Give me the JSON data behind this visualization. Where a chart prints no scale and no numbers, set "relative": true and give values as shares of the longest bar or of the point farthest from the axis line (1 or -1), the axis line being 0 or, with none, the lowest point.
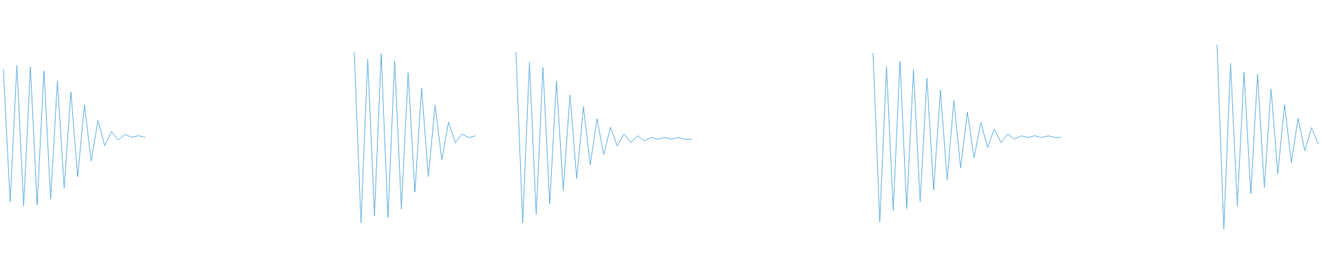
{
  "chart_data": [
    {
      "type": "line",
      "relative": true,
      "color": "#5dade2",
      "categories": [
        null,
        null,
        null,
        null,
        null,
        null,
        null,
        null,
        null,
        null,
        null,
        null,
        null,
        null,
        null,
        null,
        null,
        null,
        null,
        null,
        null,
        null
      ],
      "values": [
        0.97,
        0.03,
        1,
        0,
        0.99,
        0.01,
        0.96,
        0.05,
        0.89,
        0.13,
        0.81,
        0.21,
        0.72,
        0.32,
        0.61,
        0.43,
        0.53,
        0.47,
        0.51,
        0.49,
        0.5,
        0.49
      ]
    },
    {
      "type": "line",
      "relative": true,
      "color": "#5dade2",
      "categories": [
        null,
        null,
        null,
        null,
        null,
        null,
        null,
        null,
        null,
        null,
        null,
        null,
        null,
        null,
        null,
        null,
        null,
        null,
        null
      ],
      "values": [
        1,
        0,
        0.96,
        0.04,
        0.99,
        0.03,
        0.95,
        0.08,
        0.88,
        0.18,
        0.79,
        0.27,
        0.69,
        0.37,
        0.59,
        0.47,
        0.52,
        0.5,
        0.51
      ]
    },
    {
      "type": "line",
      "relative": true,
      "color": "#5dade2",
      "categories": [
        null,
        null,
        null,
        null,
        null,
        null,
        null,
        null,
        null,
        null,
        null,
        null,
        null,
        null,
        null,
        null,
        null,
        null,
        null,
        null,
        null,
        null,
        null,
        null,
        null,
        null,
        null
      ],
      "values": [
        1,
        0,
        0.94,
        0.05,
        0.91,
        0.11,
        0.83,
        0.19,
        0.75,
        0.26,
        0.68,
        0.34,
        0.61,
        0.4,
        0.56,
        0.45,
        0.52,
        0.47,
        0.51,
        0.48,
        0.5,
        0.49,
        0.5,
        0.49,
        0.5,
        0.49,
        0.49
      ]
    },
    {
      "type": "line",
      "relative": true,
      "color": "#5dade2",
      "categories": [
        null,
        null,
        null,
        null,
        null,
        null,
        null,
        null,
        null,
        null,
        null,
        null,
        null,
        null,
        null,
        null,
        null,
        null,
        null,
        null,
        null,
        null,
        null,
        null,
        null,
        null,
        null,
        null,
        null
      ],
      "values": [
        1,
        0,
        0.92,
        0.07,
        0.95,
        0.08,
        0.9,
        0.12,
        0.85,
        0.19,
        0.78,
        0.25,
        0.72,
        0.32,
        0.65,
        0.38,
        0.59,
        0.44,
        0.55,
        0.47,
        0.52,
        0.49,
        0.51,
        0.5,
        0.51,
        0.5,
        0.51,
        0.5,
        0.5
      ]
    },
    {
      "type": "line",
      "relative": true,
      "color": "#5dade2",
      "categories": [
        null,
        null,
        null,
        null,
        null,
        null,
        null,
        null,
        null,
        null,
        null,
        null,
        null,
        null,
        null,
        null
      ],
      "values": [
        1,
        0,
        0.9,
        0.125,
        0.85,
        0.19,
        0.84,
        0.225,
        0.76,
        0.3,
        0.675,
        0.36,
        0.6,
        0.425,
        0.55,
        0.46
      ]
    }
  ]
}
